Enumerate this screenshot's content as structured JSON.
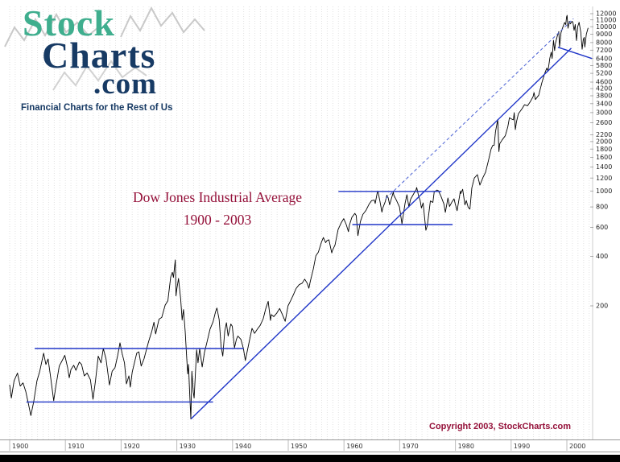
{
  "branding": {
    "logo_stock": "Stock",
    "logo_charts": "Charts",
    "logo_com": ".com",
    "tagline": "Financial Charts for the Rest of Us",
    "green_color": "#3fae8e",
    "navy_color": "#173a64"
  },
  "footer": {
    "copyright": "Copyright 2003, StockCharts.com"
  },
  "chart_data": {
    "type": "line",
    "title": "Dow Jones Industrial Average",
    "subtitle": "1900 - 2003",
    "title_color": "#95113a",
    "grid": "vertical yearly dotted gridlines, white background",
    "y_axis": {
      "scale": "log",
      "side": "right",
      "tick_labels": [
        12000,
        11000,
        10000,
        9000,
        8000,
        7200,
        6400,
        5800,
        5200,
        4600,
        4200,
        3800,
        3400,
        3000,
        2600,
        2200,
        2000,
        1800,
        1600,
        1400,
        1200,
        1000,
        800,
        600,
        400,
        200
      ]
    },
    "x_axis": {
      "labels": [
        1900,
        1910,
        1920,
        1930,
        1940,
        1950,
        1960,
        1970,
        1980,
        1990,
        2000
      ],
      "range": [
        1900,
        2005
      ]
    },
    "trend_color": "#2036c8",
    "trend_dash_color": "#5a6fd8",
    "series": [
      {
        "name": "DJIA",
        "color": "#000000",
        "points": [
          [
            1900.0,
            66
          ],
          [
            1900.3,
            55
          ],
          [
            1900.8,
            70
          ],
          [
            1901.4,
            78
          ],
          [
            1901.9,
            65
          ],
          [
            1902.4,
            68
          ],
          [
            1902.9,
            60
          ],
          [
            1903.3,
            52
          ],
          [
            1903.8,
            43
          ],
          [
            1904.3,
            52
          ],
          [
            1904.9,
            70
          ],
          [
            1905.4,
            80
          ],
          [
            1905.9,
            96
          ],
          [
            1906.1,
            103
          ],
          [
            1906.5,
            88
          ],
          [
            1906.9,
            95
          ],
          [
            1907.3,
            76
          ],
          [
            1907.9,
            53
          ],
          [
            1908.3,
            65
          ],
          [
            1908.9,
            86
          ],
          [
            1909.5,
            94
          ],
          [
            1909.9,
            100
          ],
          [
            1910.4,
            84
          ],
          [
            1910.7,
            73
          ],
          [
            1911.0,
            82
          ],
          [
            1911.5,
            87
          ],
          [
            1911.9,
            81
          ],
          [
            1912.5,
            91
          ],
          [
            1912.9,
            88
          ],
          [
            1913.4,
            75
          ],
          [
            1913.9,
            78
          ],
          [
            1914.5,
            71
          ],
          [
            1914.96,
            54
          ],
          [
            1915.4,
            70
          ],
          [
            1915.9,
            99
          ],
          [
            1916.4,
            90
          ],
          [
            1916.8,
            110
          ],
          [
            1917.3,
            95
          ],
          [
            1917.9,
            66
          ],
          [
            1918.4,
            80
          ],
          [
            1918.9,
            84
          ],
          [
            1919.4,
            100
          ],
          [
            1919.8,
            119
          ],
          [
            1920.2,
            102
          ],
          [
            1920.6,
            90
          ],
          [
            1920.95,
            67
          ],
          [
            1921.4,
            75
          ],
          [
            1921.65,
            64
          ],
          [
            1922.0,
            79
          ],
          [
            1922.8,
            103
          ],
          [
            1923.2,
            105
          ],
          [
            1923.6,
            86
          ],
          [
            1924.1,
            95
          ],
          [
            1924.9,
            120
          ],
          [
            1925.5,
            140
          ],
          [
            1925.9,
            159
          ],
          [
            1926.2,
            135
          ],
          [
            1926.8,
            166
          ],
          [
            1927.3,
            170
          ],
          [
            1927.9,
            202
          ],
          [
            1928.4,
            215
          ],
          [
            1928.9,
            300
          ],
          [
            1929.2,
            320
          ],
          [
            1929.4,
            298
          ],
          [
            1929.72,
            381
          ],
          [
            1929.85,
            230
          ],
          [
            1929.95,
            248
          ],
          [
            1930.3,
            294
          ],
          [
            1930.7,
            220
          ],
          [
            1930.95,
            164
          ],
          [
            1931.2,
            190
          ],
          [
            1931.5,
            140
          ],
          [
            1931.75,
            100
          ],
          [
            1931.95,
            77
          ],
          [
            1932.1,
            88
          ],
          [
            1932.3,
            60
          ],
          [
            1932.52,
            41
          ],
          [
            1932.7,
            80
          ],
          [
            1932.95,
            60
          ],
          [
            1933.1,
            55
          ],
          [
            1933.55,
            108
          ],
          [
            1933.8,
            90
          ],
          [
            1934.1,
            110
          ],
          [
            1934.55,
            85
          ],
          [
            1934.95,
            104
          ],
          [
            1935.4,
            120
          ],
          [
            1935.95,
            144
          ],
          [
            1936.5,
            160
          ],
          [
            1936.95,
            184
          ],
          [
            1937.2,
            194
          ],
          [
            1937.6,
            165
          ],
          [
            1937.95,
            113
          ],
          [
            1938.25,
            99
          ],
          [
            1938.6,
            140
          ],
          [
            1938.9,
            158
          ],
          [
            1939.2,
            131
          ],
          [
            1939.7,
            155
          ],
          [
            1939.95,
            150
          ],
          [
            1940.35,
            111
          ],
          [
            1940.7,
            125
          ],
          [
            1940.95,
            131
          ],
          [
            1941.5,
            125
          ],
          [
            1941.95,
            110
          ],
          [
            1942.3,
            93
          ],
          [
            1942.95,
            119
          ],
          [
            1943.5,
            146
          ],
          [
            1943.95,
            136
          ],
          [
            1944.5,
            145
          ],
          [
            1944.95,
            152
          ],
          [
            1945.5,
            167
          ],
          [
            1945.95,
            192
          ],
          [
            1946.4,
            213
          ],
          [
            1946.8,
            163
          ],
          [
            1946.95,
            177
          ],
          [
            1947.4,
            172
          ],
          [
            1947.95,
            181
          ],
          [
            1948.45,
            193
          ],
          [
            1948.95,
            177
          ],
          [
            1949.45,
            161
          ],
          [
            1949.95,
            200
          ],
          [
            1950.5,
            218
          ],
          [
            1950.95,
            235
          ],
          [
            1951.4,
            255
          ],
          [
            1951.95,
            269
          ],
          [
            1952.5,
            275
          ],
          [
            1952.95,
            291
          ],
          [
            1953.4,
            275
          ],
          [
            1953.7,
            256
          ],
          [
            1953.95,
            281
          ],
          [
            1954.5,
            335
          ],
          [
            1954.95,
            404
          ],
          [
            1955.4,
            425
          ],
          [
            1955.95,
            488
          ],
          [
            1956.3,
            521
          ],
          [
            1956.7,
            485
          ],
          [
            1956.95,
            499
          ],
          [
            1957.3,
            505
          ],
          [
            1957.8,
            420
          ],
          [
            1957.95,
            436
          ],
          [
            1958.4,
            470
          ],
          [
            1958.95,
            583
          ],
          [
            1959.5,
            640
          ],
          [
            1959.95,
            679
          ],
          [
            1960.4,
            625
          ],
          [
            1960.8,
            566
          ],
          [
            1960.95,
            616
          ],
          [
            1961.4,
            690
          ],
          [
            1961.95,
            731
          ],
          [
            1962.2,
            710
          ],
          [
            1962.5,
            535
          ],
          [
            1962.95,
            652
          ],
          [
            1963.4,
            720
          ],
          [
            1963.95,
            762
          ],
          [
            1964.5,
            830
          ],
          [
            1964.95,
            874
          ],
          [
            1965.45,
            880
          ],
          [
            1965.6,
            840
          ],
          [
            1965.95,
            969
          ],
          [
            1966.1,
            995
          ],
          [
            1966.45,
            870
          ],
          [
            1966.8,
            744
          ],
          [
            1966.95,
            786
          ],
          [
            1967.4,
            860
          ],
          [
            1967.7,
            943
          ],
          [
            1967.95,
            905
          ],
          [
            1968.2,
            825
          ],
          [
            1968.85,
            985
          ],
          [
            1968.95,
            943
          ],
          [
            1969.4,
            880
          ],
          [
            1969.95,
            800
          ],
          [
            1970.4,
            631
          ],
          [
            1970.95,
            838
          ],
          [
            1971.3,
            950
          ],
          [
            1971.65,
            798
          ],
          [
            1971.95,
            890
          ],
          [
            1972.5,
            960
          ],
          [
            1972.95,
            1020
          ],
          [
            1973.05,
            1051
          ],
          [
            1973.4,
            930
          ],
          [
            1973.65,
            880
          ],
          [
            1973.9,
            788
          ],
          [
            1974.2,
            846
          ],
          [
            1974.7,
            577
          ],
          [
            1974.95,
            616
          ],
          [
            1975.5,
            870
          ],
          [
            1975.95,
            852
          ],
          [
            1976.2,
            990
          ],
          [
            1976.7,
            1014
          ],
          [
            1976.95,
            1004
          ],
          [
            1977.4,
            930
          ],
          [
            1977.95,
            831
          ],
          [
            1978.2,
            742
          ],
          [
            1978.65,
            907
          ],
          [
            1978.95,
            805
          ],
          [
            1979.4,
            860
          ],
          [
            1979.75,
            897
          ],
          [
            1979.95,
            838
          ],
          [
            1980.3,
            759
          ],
          [
            1980.9,
            1000
          ],
          [
            1980.95,
            964
          ],
          [
            1981.3,
            1024
          ],
          [
            1981.7,
            824
          ],
          [
            1981.95,
            875
          ],
          [
            1982.3,
            795
          ],
          [
            1982.6,
            776
          ],
          [
            1982.95,
            1046
          ],
          [
            1983.4,
            1200
          ],
          [
            1983.95,
            1258
          ],
          [
            1984.4,
            1086
          ],
          [
            1984.95,
            1211
          ],
          [
            1985.4,
            1300
          ],
          [
            1985.95,
            1546
          ],
          [
            1986.4,
            1800
          ],
          [
            1986.7,
            1895
          ],
          [
            1986.95,
            1896
          ],
          [
            1987.2,
            2300
          ],
          [
            1987.6,
            2722
          ],
          [
            1987.8,
            1738
          ],
          [
            1987.95,
            1938
          ],
          [
            1988.4,
            2050
          ],
          [
            1988.95,
            2168
          ],
          [
            1989.4,
            2450
          ],
          [
            1989.7,
            2791
          ],
          [
            1989.95,
            2753
          ],
          [
            1990.4,
            2710
          ],
          [
            1990.55,
            2999
          ],
          [
            1990.75,
            2365
          ],
          [
            1990.95,
            2633
          ],
          [
            1991.3,
            2950
          ],
          [
            1991.95,
            3168
          ],
          [
            1992.4,
            3350
          ],
          [
            1992.95,
            3301
          ],
          [
            1993.4,
            3480
          ],
          [
            1993.95,
            3754
          ],
          [
            1994.1,
            3978
          ],
          [
            1994.35,
            3600
          ],
          [
            1994.95,
            3834
          ],
          [
            1995.5,
            4550
          ],
          [
            1995.95,
            5117
          ],
          [
            1996.4,
            5600
          ],
          [
            1996.6,
            5350
          ],
          [
            1996.95,
            6448
          ],
          [
            1997.2,
            7000
          ],
          [
            1997.35,
            6400
          ],
          [
            1997.6,
            8259
          ],
          [
            1997.8,
            7161
          ],
          [
            1997.95,
            7908
          ],
          [
            1998.3,
            8800
          ],
          [
            1998.55,
            9337
          ],
          [
            1998.68,
            7539
          ],
          [
            1998.95,
            9181
          ],
          [
            1999.3,
            10000
          ],
          [
            1999.6,
            10600
          ],
          [
            1999.8,
            10300
          ],
          [
            1999.95,
            11497
          ],
          [
            2000.05,
            11723
          ],
          [
            2000.2,
            9796
          ],
          [
            2000.45,
            10800
          ],
          [
            2000.6,
            10400
          ],
          [
            2000.95,
            10786
          ],
          [
            2001.1,
            10600
          ],
          [
            2001.3,
            9500
          ],
          [
            2001.5,
            10300
          ],
          [
            2001.72,
            8236
          ],
          [
            2001.95,
            10021
          ],
          [
            2002.2,
            10635
          ],
          [
            2002.5,
            9250
          ],
          [
            2002.75,
            7286
          ],
          [
            2002.95,
            8341
          ],
          [
            2003.1,
            8600
          ],
          [
            2003.22,
            7524
          ],
          [
            2003.5,
            9000
          ],
          [
            2003.8,
            9800
          ]
        ]
      }
    ],
    "trendlines": [
      {
        "name": "resistance-110",
        "style": "solid",
        "from": [
          1904.5,
          110
        ],
        "to": [
          1942,
          110
        ]
      },
      {
        "name": "support-52",
        "style": "solid",
        "from": [
          1903,
          52
        ],
        "to": [
          1936.5,
          52
        ]
      },
      {
        "name": "resistance-1000",
        "style": "solid",
        "from": [
          1959,
          995
        ],
        "to": [
          1977.5,
          995
        ]
      },
      {
        "name": "support-625",
        "style": "solid",
        "from": [
          1961.5,
          625
        ],
        "to": [
          1979.5,
          625
        ]
      },
      {
        "name": "long-term-uptrend",
        "style": "solid",
        "from": [
          1932.55,
          41
        ],
        "to": [
          2000.8,
          7400
        ]
      },
      {
        "name": "channel-upper",
        "style": "dashed",
        "from": [
          1967.5,
          900
        ],
        "to": [
          2001.2,
          11200
        ]
      },
      {
        "name": "recent-support",
        "style": "solid",
        "from": [
          1998.4,
          7500
        ],
        "to": [
          2004.5,
          6400
        ]
      }
    ]
  }
}
